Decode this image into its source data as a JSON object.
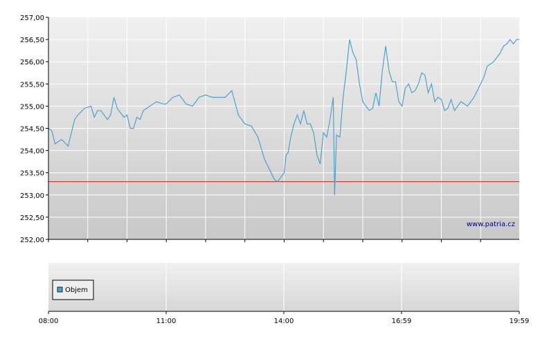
{
  "chart_data": [
    {
      "type": "line",
      "watermark": "www.patria.cz",
      "ylim": [
        252.0,
        257.0
      ],
      "xlim": [
        "08:00",
        "19:59"
      ],
      "y_ticks": [
        "257,00",
        "256,50",
        "256,00",
        "255,50",
        "255,00",
        "254,50",
        "254,00",
        "253,50",
        "253,00",
        "252,50",
        "252,00"
      ],
      "grid": true,
      "reference_line": {
        "y": 253.3,
        "color": "#cc3333"
      },
      "series": [
        {
          "color": "#4aa3cc",
          "x": [
            "08:00",
            "08:05",
            "08:10",
            "08:15",
            "08:20",
            "08:30",
            "08:40",
            "08:45",
            "08:55",
            "09:05",
            "09:10",
            "09:15",
            "09:20",
            "09:30",
            "09:35",
            "09:40",
            "09:45",
            "09:55",
            "10:00",
            "10:05",
            "10:10",
            "10:15",
            "10:20",
            "10:25",
            "10:35",
            "10:45",
            "10:55",
            "11:00",
            "11:10",
            "11:20",
            "11:30",
            "11:40",
            "11:50",
            "12:00",
            "12:10",
            "12:20",
            "12:30",
            "12:40",
            "12:50",
            "13:00",
            "13:10",
            "13:20",
            "13:30",
            "13:40",
            "13:45",
            "13:50",
            "13:55",
            "14:00",
            "14:03",
            "14:06",
            "14:10",
            "14:15",
            "14:20",
            "14:25",
            "14:30",
            "14:35",
            "14:40",
            "14:45",
            "14:50",
            "14:55",
            "15:00",
            "15:05",
            "15:10",
            "15:15",
            "15:17",
            "15:20",
            "15:25",
            "15:30",
            "15:35",
            "15:40",
            "15:45",
            "15:50",
            "15:55",
            "16:00",
            "16:05",
            "16:10",
            "16:15",
            "16:20",
            "16:25",
            "16:30",
            "16:35",
            "16:40",
            "16:45",
            "16:50",
            "16:55",
            "17:00",
            "17:05",
            "17:10",
            "17:15",
            "17:20",
            "17:25",
            "17:30",
            "17:35",
            "17:40",
            "17:45",
            "17:50",
            "17:55",
            "18:00",
            "18:05",
            "18:10",
            "18:15",
            "18:20",
            "18:25",
            "18:30",
            "18:40",
            "18:50",
            "19:00",
            "19:05",
            "19:10",
            "19:20",
            "19:30",
            "19:35",
            "19:40",
            "19:45",
            "19:50",
            "19:55",
            "19:59"
          ],
          "y": [
            254.5,
            254.45,
            254.15,
            254.2,
            254.25,
            254.1,
            254.7,
            254.8,
            254.95,
            255.0,
            254.75,
            254.9,
            254.9,
            254.7,
            254.8,
            255.2,
            254.95,
            254.75,
            254.8,
            254.5,
            254.5,
            254.75,
            254.7,
            254.9,
            255.0,
            255.1,
            255.05,
            255.05,
            255.2,
            255.25,
            255.05,
            255.0,
            255.2,
            255.25,
            255.2,
            255.2,
            255.2,
            255.35,
            254.8,
            254.6,
            254.55,
            254.3,
            253.8,
            253.5,
            253.35,
            253.3,
            253.4,
            253.5,
            253.9,
            253.95,
            254.3,
            254.6,
            254.8,
            254.6,
            254.9,
            254.6,
            254.6,
            254.4,
            253.9,
            253.7,
            254.4,
            254.3,
            254.7,
            255.2,
            253.0,
            254.35,
            254.3,
            255.2,
            255.8,
            256.5,
            256.2,
            256.05,
            255.5,
            255.1,
            255.0,
            254.9,
            254.95,
            255.3,
            255.0,
            255.8,
            256.35,
            255.8,
            255.55,
            255.55,
            255.1,
            255.0,
            255.4,
            255.5,
            255.3,
            255.35,
            255.5,
            255.75,
            255.7,
            255.3,
            255.5,
            255.1,
            255.2,
            255.15,
            254.9,
            254.95,
            255.15,
            254.9,
            255.0,
            255.1,
            255.0,
            255.2,
            255.5,
            255.65,
            255.9,
            256.0,
            256.2,
            256.35,
            256.4,
            256.5,
            256.4,
            256.5,
            256.5
          ]
        }
      ]
    },
    {
      "type": "bar",
      "legend": [
        "Objem"
      ],
      "legend_color": "#4aa3cc",
      "x_ticks": [
        "08:00",
        "11:00",
        "14:00",
        "16:59",
        "19:59"
      ],
      "grid": true,
      "series": [
        {
          "name": "Objem",
          "values": []
        }
      ]
    }
  ]
}
